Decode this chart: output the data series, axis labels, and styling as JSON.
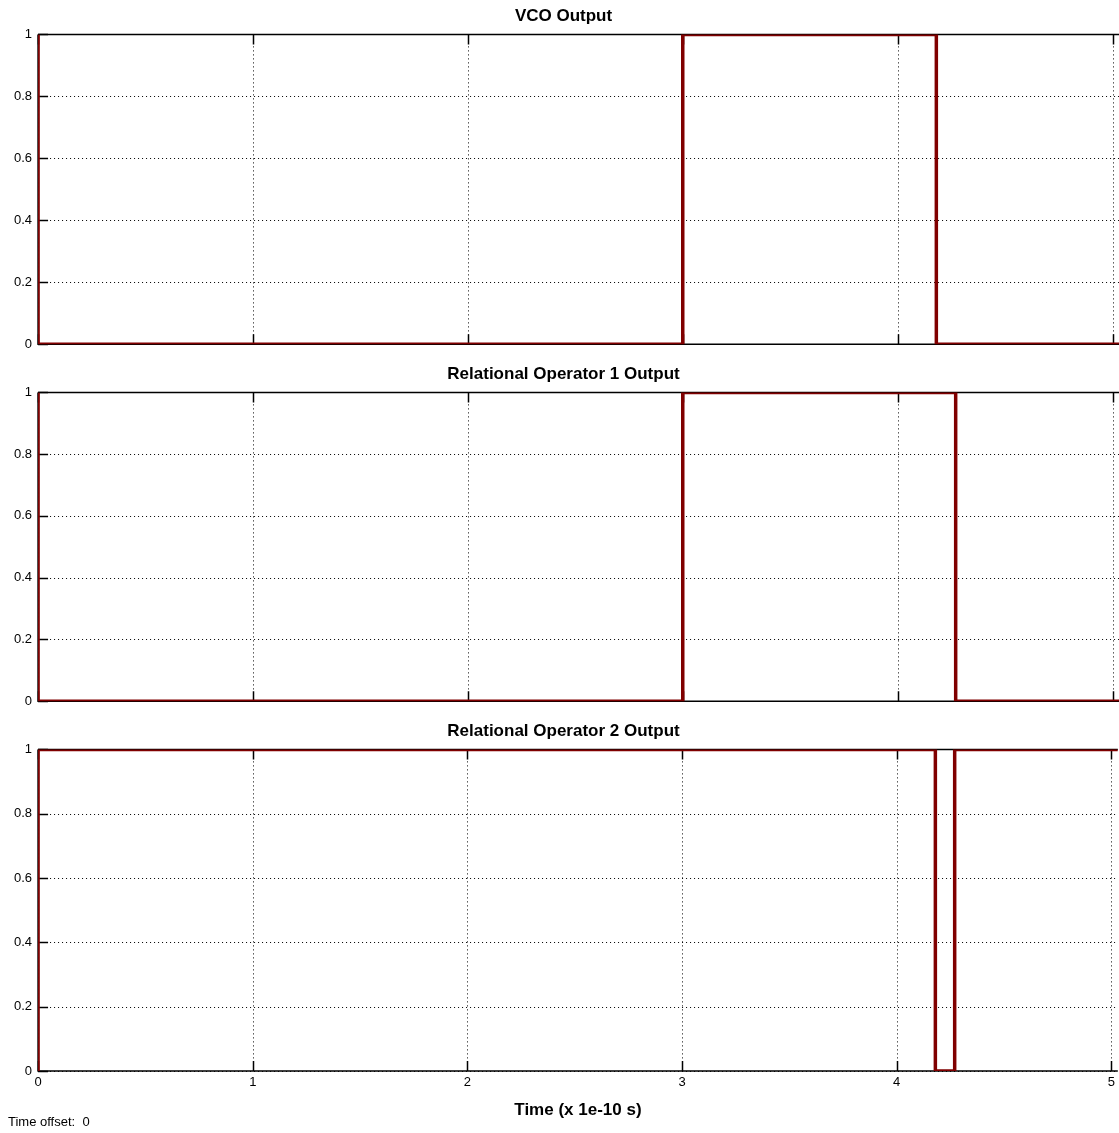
{
  "chart_data": [
    {
      "type": "step",
      "title": "VCO Output",
      "x": [
        0,
        0,
        3,
        4.18,
        5.03
      ],
      "series": [
        {
          "color": "#800000",
          "values": [
            1,
            0,
            1,
            0,
            0
          ]
        }
      ],
      "xlim": [
        0,
        5.03
      ],
      "xticks": [
        0,
        1,
        2,
        3,
        4,
        5
      ],
      "ylim": [
        0,
        1
      ],
      "yticks": [
        0,
        0.2,
        0.4,
        0.6,
        0.8,
        1
      ],
      "grid": true,
      "legend": false,
      "line_style": "solid",
      "marker": "none",
      "tick_labels": "y"
    },
    {
      "type": "step",
      "title": "Relational Operator 1 Output",
      "x": [
        0,
        0,
        3,
        4.27,
        5.03
      ],
      "series": [
        {
          "color": "#800000",
          "values": [
            1,
            0,
            1,
            0,
            0
          ]
        }
      ],
      "xlim": [
        0,
        5.03
      ],
      "xticks": [
        0,
        1,
        2,
        3,
        4,
        5
      ],
      "ylim": [
        0,
        1
      ],
      "yticks": [
        0,
        0.2,
        0.4,
        0.6,
        0.8,
        1
      ],
      "grid": true,
      "legend": false,
      "line_style": "solid",
      "marker": "none",
      "tick_labels": "y"
    },
    {
      "type": "step",
      "title": "Relational Operator 2 Output",
      "xlabel": "Time (x 1e-10 s)",
      "x": [
        0,
        0,
        4.18,
        4.27,
        5.03
      ],
      "series": [
        {
          "color": "#800000",
          "values": [
            0,
            1,
            0,
            1,
            1
          ]
        }
      ],
      "xlim": [
        0,
        5.03
      ],
      "xticks": [
        0,
        1,
        2,
        3,
        4,
        5
      ],
      "ylim": [
        0,
        1
      ],
      "yticks": [
        0,
        0.2,
        0.4,
        0.6,
        0.8,
        1
      ],
      "grid": true,
      "legend": false,
      "line_style": "solid",
      "marker": "none",
      "annotations": [
        "Time offset:  0"
      ]
    }
  ]
}
